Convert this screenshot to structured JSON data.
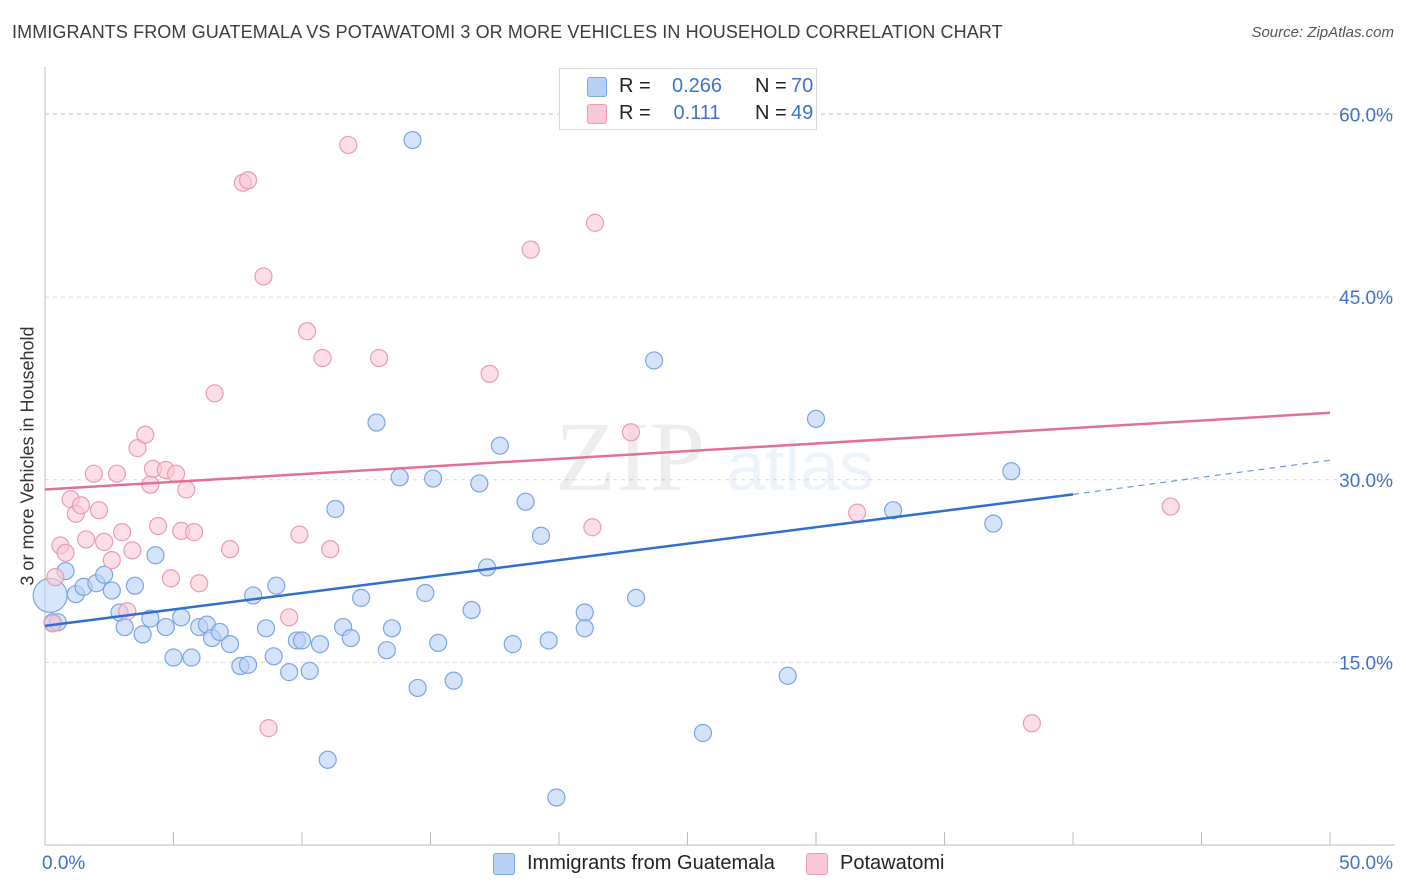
{
  "chart_data": {
    "type": "scatter",
    "title": "IMMIGRANTS FROM GUATEMALA VS POTAWATOMI 3 OR MORE VEHICLES IN HOUSEHOLD CORRELATION CHART",
    "source": "Source: ZipAtlas.com",
    "xlabel": "",
    "ylabel": "3 or more Vehicles in Household",
    "xlim": [
      0,
      50
    ],
    "ylim": [
      0,
      63
    ],
    "x_tick_labels": [
      {
        "value": 0,
        "label": "0.0%"
      },
      {
        "value": 50,
        "label": "50.0%"
      }
    ],
    "y_tick_labels": [
      {
        "value": 15,
        "label": "15.0%"
      },
      {
        "value": 30,
        "label": "30.0%"
      },
      {
        "value": 45,
        "label": "45.0%"
      },
      {
        "value": 60,
        "label": "60.0%"
      }
    ],
    "watermark": {
      "main": "ZIP",
      "sub": "atlas"
    },
    "legend_stats": [
      {
        "r_label": "R =",
        "r_value": "0.266",
        "n_label": "N =",
        "n_value": "70"
      },
      {
        "r_label": "R =",
        "r_value": "0.111",
        "n_label": "N =",
        "n_value": "49"
      }
    ],
    "series": [
      {
        "name": "Immigrants from Guatemala",
        "color": "#7aa5e6",
        "fill": "#b7d1f5",
        "trend_color": "#2f6fd0",
        "trend": {
          "x0": 0,
          "y0": 18.0,
          "x1": 40,
          "y1": 28.8,
          "dash_to_x": 50,
          "dash_to_y": 31.6
        },
        "points": [
          [
            0.2,
            20.5
          ],
          [
            0.3,
            18.3
          ],
          [
            0.8,
            22.5
          ],
          [
            1.2,
            20.6
          ],
          [
            1.5,
            21.2
          ],
          [
            2.0,
            21.5
          ],
          [
            2.3,
            22.2
          ],
          [
            2.6,
            20.9
          ],
          [
            2.9,
            19.1
          ],
          [
            3.1,
            17.9
          ],
          [
            3.5,
            21.3
          ],
          [
            3.8,
            17.3
          ],
          [
            4.1,
            18.6
          ],
          [
            4.3,
            23.8
          ],
          [
            4.7,
            17.9
          ],
          [
            5.0,
            15.4
          ],
          [
            5.3,
            18.7
          ],
          [
            5.7,
            15.4
          ],
          [
            6.0,
            17.9
          ],
          [
            6.3,
            18.1
          ],
          [
            6.5,
            17.0
          ],
          [
            6.8,
            17.5
          ],
          [
            7.2,
            16.5
          ],
          [
            7.6,
            14.7
          ],
          [
            7.9,
            14.8
          ],
          [
            8.1,
            20.5
          ],
          [
            8.6,
            17.8
          ],
          [
            8.9,
            15.5
          ],
          [
            9.0,
            21.3
          ],
          [
            9.5,
            14.2
          ],
          [
            9.8,
            16.8
          ],
          [
            10.0,
            16.8
          ],
          [
            10.3,
            14.3
          ],
          [
            10.7,
            16.5
          ],
          [
            11.0,
            7.0
          ],
          [
            11.3,
            27.6
          ],
          [
            11.6,
            17.9
          ],
          [
            11.9,
            17.0
          ],
          [
            12.3,
            20.3
          ],
          [
            12.9,
            34.7
          ],
          [
            13.3,
            16.0
          ],
          [
            13.5,
            17.8
          ],
          [
            13.8,
            30.2
          ],
          [
            14.3,
            57.9
          ],
          [
            14.5,
            12.9
          ],
          [
            14.8,
            20.7
          ],
          [
            15.1,
            30.1
          ],
          [
            15.3,
            16.6
          ],
          [
            15.9,
            13.5
          ],
          [
            16.6,
            19.3
          ],
          [
            16.9,
            29.7
          ],
          [
            17.2,
            22.8
          ],
          [
            17.7,
            32.8
          ],
          [
            18.2,
            16.5
          ],
          [
            18.7,
            28.2
          ],
          [
            19.3,
            25.4
          ],
          [
            19.6,
            16.8
          ],
          [
            19.9,
            3.9
          ],
          [
            21.0,
            19.1
          ],
          [
            21.0,
            17.8
          ],
          [
            21.5,
            59.5
          ],
          [
            23.0,
            20.3
          ],
          [
            23.7,
            39.8
          ],
          [
            25.6,
            9.2
          ],
          [
            28.9,
            13.9
          ],
          [
            30.0,
            35.0
          ],
          [
            33.0,
            27.5
          ],
          [
            36.9,
            26.4
          ],
          [
            37.6,
            30.7
          ],
          [
            0.5,
            18.3
          ]
        ]
      },
      {
        "name": "Potawatomi",
        "color": "#ec9ab3",
        "fill": "#f9c8d6",
        "trend_color": "#e0709a",
        "trend": {
          "x0": 0,
          "y0": 29.2,
          "x1": 50,
          "y1": 35.5
        },
        "points": [
          [
            0.3,
            18.2
          ],
          [
            0.4,
            22.0
          ],
          [
            0.6,
            24.6
          ],
          [
            0.8,
            24.0
          ],
          [
            1.0,
            28.4
          ],
          [
            1.2,
            27.2
          ],
          [
            1.4,
            27.9
          ],
          [
            1.6,
            25.1
          ],
          [
            1.9,
            30.5
          ],
          [
            2.1,
            27.5
          ],
          [
            2.3,
            24.9
          ],
          [
            2.6,
            23.4
          ],
          [
            2.8,
            30.5
          ],
          [
            3.0,
            25.7
          ],
          [
            3.2,
            19.2
          ],
          [
            3.4,
            24.2
          ],
          [
            3.6,
            32.6
          ],
          [
            3.9,
            33.7
          ],
          [
            4.1,
            29.6
          ],
          [
            4.2,
            30.9
          ],
          [
            4.4,
            26.2
          ],
          [
            4.7,
            30.8
          ],
          [
            4.9,
            21.9
          ],
          [
            5.1,
            30.5
          ],
          [
            5.3,
            25.8
          ],
          [
            5.5,
            29.2
          ],
          [
            5.8,
            25.7
          ],
          [
            6.0,
            21.5
          ],
          [
            6.6,
            37.1
          ],
          [
            7.2,
            24.3
          ],
          [
            7.7,
            54.4
          ],
          [
            7.9,
            54.6
          ],
          [
            8.5,
            46.7
          ],
          [
            8.7,
            9.6
          ],
          [
            9.5,
            18.7
          ],
          [
            9.9,
            25.5
          ],
          [
            10.2,
            42.2
          ],
          [
            10.8,
            40.0
          ],
          [
            11.1,
            24.3
          ],
          [
            11.8,
            57.5
          ],
          [
            13.0,
            40.0
          ],
          [
            17.3,
            38.7
          ],
          [
            18.9,
            48.9
          ],
          [
            21.3,
            26.1
          ],
          [
            21.4,
            51.1
          ],
          [
            22.8,
            33.9
          ],
          [
            31.6,
            27.3
          ],
          [
            38.4,
            10.0
          ],
          [
            43.8,
            27.8
          ]
        ]
      }
    ]
  }
}
